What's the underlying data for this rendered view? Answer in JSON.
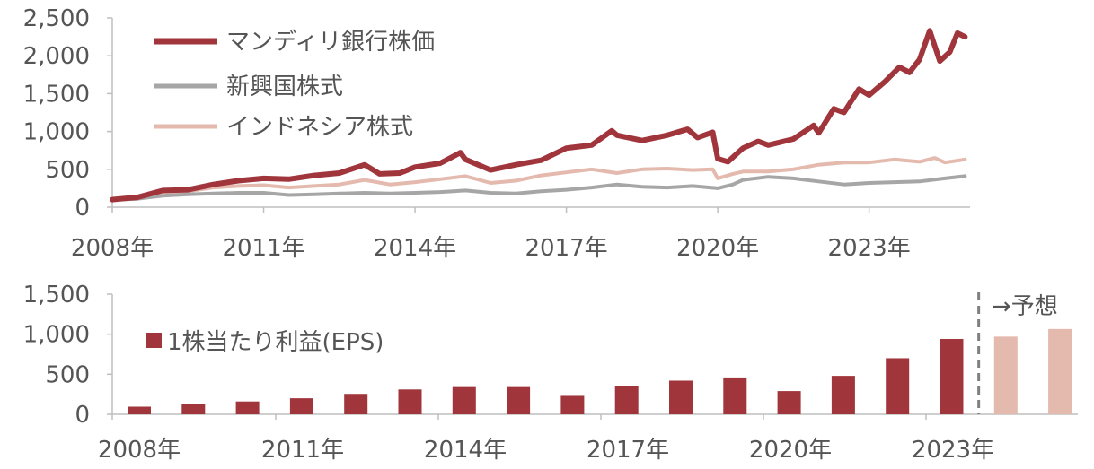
{
  "chart_data": [
    {
      "type": "line",
      "x": [
        "2008年",
        "2011年",
        "2014年",
        "2017年",
        "2020年",
        "2023年"
      ],
      "ylim": [
        0,
        2500
      ],
      "yticks": [
        "0",
        "500",
        "1,000",
        "1,500",
        "2,000",
        "2,500"
      ],
      "legend_position": "top-left",
      "grid": false,
      "series": [
        {
          "name": "マンディリ銀行株価",
          "color": "#a0353c",
          "points": [
            [
              2008.0,
              100
            ],
            [
              2008.5,
              130
            ],
            [
              2009.0,
              220
            ],
            [
              2009.5,
              230
            ],
            [
              2010.0,
              300
            ],
            [
              2010.5,
              350
            ],
            [
              2011.0,
              380
            ],
            [
              2011.5,
              370
            ],
            [
              2012.0,
              420
            ],
            [
              2012.5,
              450
            ],
            [
              2013.0,
              560
            ],
            [
              2013.3,
              440
            ],
            [
              2013.7,
              450
            ],
            [
              2014.0,
              530
            ],
            [
              2014.5,
              580
            ],
            [
              2014.9,
              720
            ],
            [
              2015.0,
              630
            ],
            [
              2015.5,
              490
            ],
            [
              2016.0,
              560
            ],
            [
              2016.5,
              620
            ],
            [
              2017.0,
              780
            ],
            [
              2017.5,
              820
            ],
            [
              2017.9,
              1010
            ],
            [
              2018.0,
              950
            ],
            [
              2018.5,
              880
            ],
            [
              2019.0,
              950
            ],
            [
              2019.4,
              1030
            ],
            [
              2019.6,
              920
            ],
            [
              2019.9,
              990
            ],
            [
              2020.0,
              640
            ],
            [
              2020.2,
              600
            ],
            [
              2020.5,
              780
            ],
            [
              2020.8,
              870
            ],
            [
              2021.0,
              820
            ],
            [
              2021.5,
              900
            ],
            [
              2021.9,
              1080
            ],
            [
              2022.0,
              980
            ],
            [
              2022.3,
              1300
            ],
            [
              2022.5,
              1250
            ],
            [
              2022.8,
              1560
            ],
            [
              2023.0,
              1480
            ],
            [
              2023.3,
              1650
            ],
            [
              2023.6,
              1850
            ],
            [
              2023.8,
              1780
            ],
            [
              2024.0,
              1950
            ],
            [
              2024.2,
              2330
            ],
            [
              2024.4,
              1930
            ],
            [
              2024.6,
              2050
            ],
            [
              2024.75,
              2300
            ],
            [
              2024.9,
              2250
            ]
          ]
        },
        {
          "name": "新興国株式",
          "color": "#a6a6a6",
          "points": [
            [
              2008.0,
              100
            ],
            [
              2008.5,
              110
            ],
            [
              2009.0,
              150
            ],
            [
              2009.5,
              170
            ],
            [
              2010.0,
              180
            ],
            [
              2010.5,
              190
            ],
            [
              2011.0,
              190
            ],
            [
              2011.5,
              160
            ],
            [
              2012.0,
              170
            ],
            [
              2012.5,
              180
            ],
            [
              2013.0,
              190
            ],
            [
              2013.5,
              180
            ],
            [
              2014.0,
              190
            ],
            [
              2014.5,
              200
            ],
            [
              2015.0,
              220
            ],
            [
              2015.5,
              190
            ],
            [
              2016.0,
              180
            ],
            [
              2016.5,
              210
            ],
            [
              2017.0,
              230
            ],
            [
              2017.5,
              260
            ],
            [
              2018.0,
              300
            ],
            [
              2018.5,
              270
            ],
            [
              2019.0,
              260
            ],
            [
              2019.5,
              280
            ],
            [
              2020.0,
              250
            ],
            [
              2020.3,
              300
            ],
            [
              2020.5,
              360
            ],
            [
              2021.0,
              400
            ],
            [
              2021.5,
              380
            ],
            [
              2022.0,
              340
            ],
            [
              2022.5,
              300
            ],
            [
              2023.0,
              320
            ],
            [
              2023.5,
              330
            ],
            [
              2024.0,
              340
            ],
            [
              2024.5,
              380
            ],
            [
              2024.9,
              410
            ]
          ]
        },
        {
          "name": "インドネシア株式",
          "color": "#e4b9ae",
          "points": [
            [
              2008.0,
              100
            ],
            [
              2008.5,
              110
            ],
            [
              2009.0,
              200
            ],
            [
              2009.5,
              210
            ],
            [
              2010.0,
              260
            ],
            [
              2010.5,
              280
            ],
            [
              2011.0,
              290
            ],
            [
              2011.5,
              260
            ],
            [
              2012.0,
              280
            ],
            [
              2012.5,
              300
            ],
            [
              2013.0,
              360
            ],
            [
              2013.5,
              300
            ],
            [
              2014.0,
              330
            ],
            [
              2014.5,
              370
            ],
            [
              2015.0,
              410
            ],
            [
              2015.5,
              320
            ],
            [
              2016.0,
              350
            ],
            [
              2016.5,
              420
            ],
            [
              2017.0,
              460
            ],
            [
              2017.5,
              500
            ],
            [
              2018.0,
              450
            ],
            [
              2018.5,
              500
            ],
            [
              2019.0,
              510
            ],
            [
              2019.5,
              490
            ],
            [
              2019.9,
              500
            ],
            [
              2020.0,
              380
            ],
            [
              2020.3,
              440
            ],
            [
              2020.5,
              470
            ],
            [
              2021.0,
              470
            ],
            [
              2021.5,
              500
            ],
            [
              2022.0,
              560
            ],
            [
              2022.5,
              590
            ],
            [
              2023.0,
              590
            ],
            [
              2023.5,
              630
            ],
            [
              2024.0,
              600
            ],
            [
              2024.3,
              650
            ],
            [
              2024.5,
              590
            ],
            [
              2024.9,
              630
            ]
          ]
        }
      ]
    },
    {
      "type": "bar",
      "categories": [
        "2008年",
        "2009年",
        "2010年",
        "2011年",
        "2012年",
        "2013年",
        "2014年",
        "2015年",
        "2016年",
        "2017年",
        "2018年",
        "2019年",
        "2020年",
        "2021年",
        "2022年",
        "2023年",
        "2024年",
        "2025年"
      ],
      "values": [
        95,
        125,
        160,
        200,
        255,
        310,
        340,
        340,
        230,
        350,
        420,
        460,
        290,
        480,
        700,
        940,
        970,
        1065
      ],
      "forecast_from_index": 16,
      "ylim": [
        0,
        1500
      ],
      "yticks": [
        "0",
        "500",
        "1,000",
        "1,500"
      ],
      "xticks": [
        "2008年",
        "2011年",
        "2014年",
        "2017年",
        "2020年",
        "2023年"
      ],
      "legend": "1株当たり利益(EPS)",
      "forecast_label": "→予想",
      "colors": {
        "actual": "#a0353c",
        "forecast": "#e4b9ae",
        "divider": "#808080"
      },
      "legend_position": "top-left",
      "grid": false
    }
  ]
}
